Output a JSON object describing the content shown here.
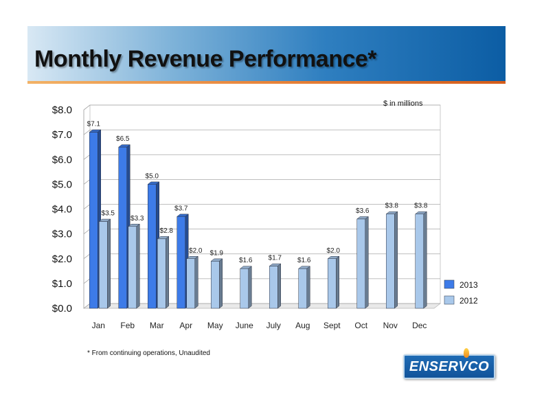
{
  "slide": {
    "title": "Monthly Revenue Performance*",
    "units_note": "$ in millions",
    "footnote": "* From continuing operations, Unaudited",
    "logo_text": "ENSERVCO"
  },
  "colors": {
    "series_2013": "#3d7be8",
    "series_2012": "#a9c8ea",
    "banner_dark": "#0c5da4",
    "accent_orange": "#e8843a"
  },
  "chart_data": {
    "type": "bar",
    "categories": [
      "Jan",
      "Feb",
      "Mar",
      "Apr",
      "May",
      "June",
      "July",
      "Aug",
      "Sept",
      "Oct",
      "Nov",
      "Dec"
    ],
    "series": [
      {
        "name": "2013",
        "values": [
          7.1,
          6.5,
          5.0,
          3.7,
          null,
          null,
          null,
          null,
          null,
          null,
          null,
          null
        ],
        "labels": [
          "$7.1",
          "$6.5",
          "$5.0",
          "$3.7",
          null,
          null,
          null,
          null,
          null,
          null,
          null,
          null
        ]
      },
      {
        "name": "2012",
        "values": [
          3.5,
          3.3,
          2.8,
          2.0,
          1.9,
          1.6,
          1.7,
          1.6,
          2.0,
          3.6,
          3.8,
          3.8
        ],
        "labels": [
          "$3.5",
          "$3.3",
          "$2.8",
          "$2.0",
          "$1.9",
          "$1.6",
          "$1.7",
          "$1.6",
          "$2.0",
          "$3.6",
          "$3.8",
          "$3.8"
        ]
      }
    ],
    "yticks": [
      "$0.0",
      "$1.0",
      "$2.0",
      "$3.0",
      "$4.0",
      "$5.0",
      "$6.0",
      "$7.0",
      "$8.0"
    ],
    "ylim": [
      0,
      8
    ],
    "grid": true,
    "legend_position": "right"
  }
}
